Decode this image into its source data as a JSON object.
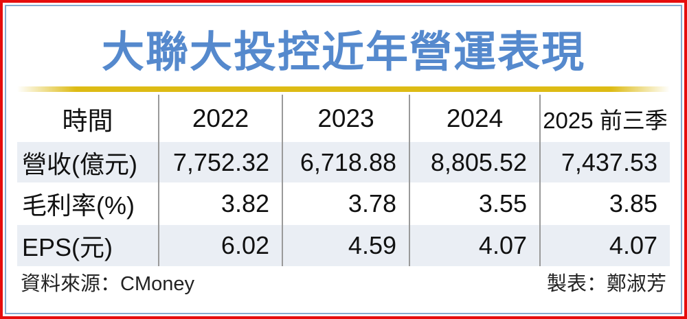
{
  "title": "大聯大投控近年營運表現",
  "table": {
    "header": [
      "時間",
      "2022",
      "2023",
      "2024",
      "2025 前三季"
    ],
    "rows": [
      {
        "label": "營收(億元)",
        "values": [
          "7,752.32",
          "6,718.88",
          "8,805.52",
          "7,437.53"
        ]
      },
      {
        "label": "毛利率(%)",
        "values": [
          "3.82",
          "3.78",
          "3.55",
          "3.85"
        ]
      },
      {
        "label": "EPS(元)",
        "values": [
          "6.02",
          "4.59",
          "4.07",
          "4.07"
        ]
      }
    ]
  },
  "footer": {
    "source": "資料來源：CMoney",
    "credit": "製表：鄭淑芳"
  },
  "chart_data": {
    "type": "table",
    "title": "大聯大投控近年營運表現",
    "categories": [
      "2022",
      "2023",
      "2024",
      "2025 前三季"
    ],
    "series": [
      {
        "name": "營收(億元)",
        "values": [
          7752.32,
          6718.88,
          8805.52,
          7437.53
        ]
      },
      {
        "name": "毛利率(%)",
        "values": [
          3.82,
          3.78,
          3.55,
          3.85
        ]
      },
      {
        "name": "EPS(元)",
        "values": [
          6.02,
          4.59,
          4.07,
          4.07
        ]
      }
    ],
    "source_label": "資料來源：CMoney",
    "credit_label": "製表：鄭淑芳"
  },
  "colors": {
    "border_red": "#e60d0d",
    "border_blue": "#84abd0",
    "title_blue": "#5589cd",
    "gold_bar": "#ddbb14",
    "row_shade": "#eaeef4",
    "divider_gray": "#9a9a9a"
  }
}
